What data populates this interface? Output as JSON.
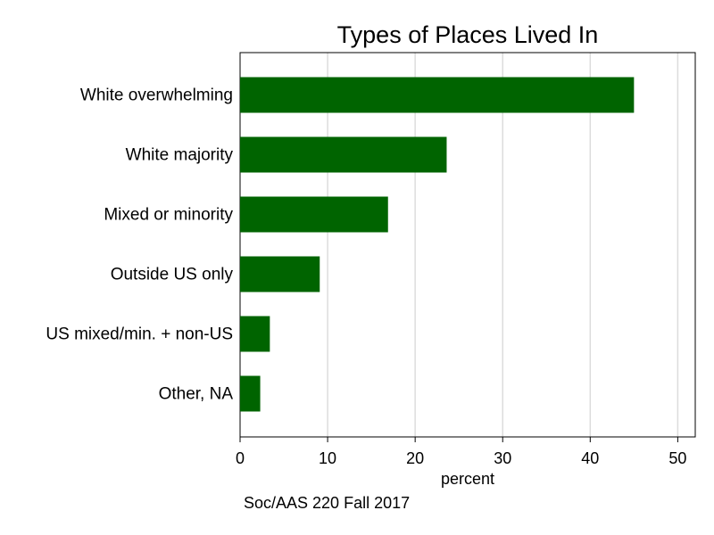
{
  "chart_data": {
    "type": "bar",
    "orientation": "horizontal",
    "title": "Types of Places Lived In",
    "xlabel": "percent",
    "ylabel": "",
    "categories": [
      "White overwhelming",
      "White majority",
      "Mixed or minority",
      "Outside US only",
      "US mixed/min. + non-US",
      "Other, NA"
    ],
    "values": [
      45.0,
      23.6,
      16.9,
      9.1,
      3.4,
      2.3
    ],
    "xlim": [
      0,
      52
    ],
    "xticks": [
      0,
      10,
      20,
      30,
      40,
      50
    ],
    "grid": "vertical",
    "legend": "none",
    "note": "Soc/AAS 220 Fall 2017",
    "colors": {
      "bar": "#006400",
      "grid": "#dcdcdc",
      "axis": "#000000"
    }
  }
}
